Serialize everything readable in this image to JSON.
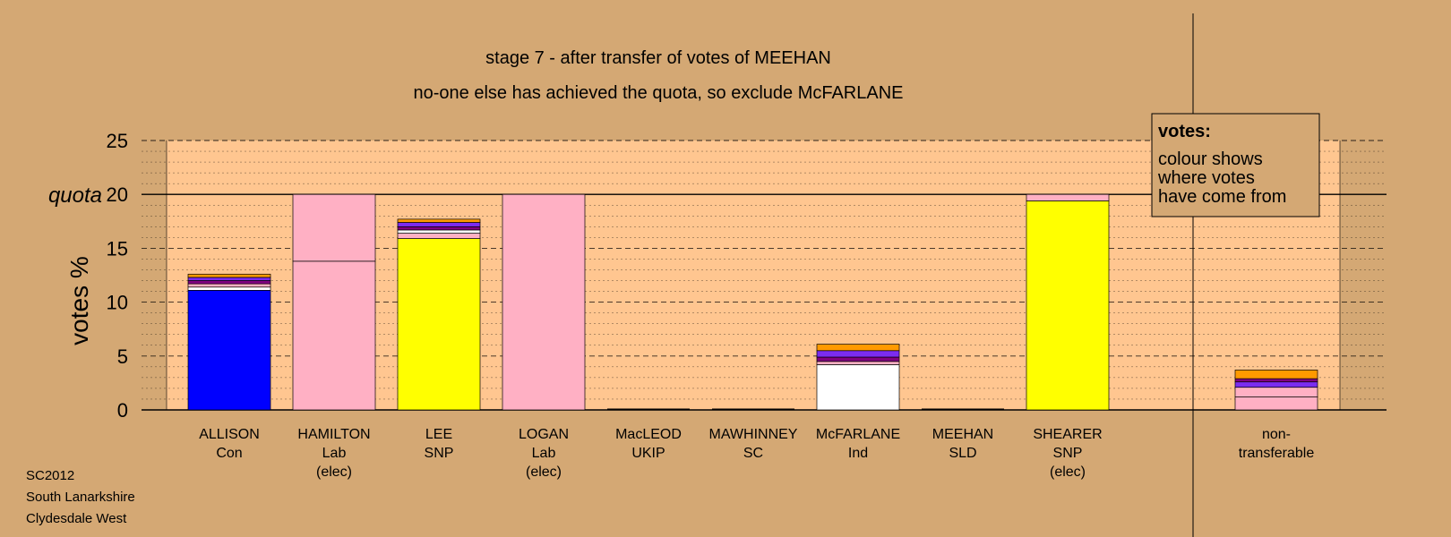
{
  "chart_data": {
    "type": "bar",
    "stacked": true,
    "title": "stage 7 - after transfer of votes of MEEHAN",
    "subtitle": "no-one else has achieved the quota, so exclude McFARLANE",
    "ylabel": "votes %",
    "ylim": [
      0,
      25
    ],
    "yticks": [
      0,
      5,
      10,
      15,
      20,
      25
    ],
    "quota": 20,
    "quota_label": "quota",
    "grid": true,
    "categories": [
      {
        "lines": [
          "ALLISON",
          "Con"
        ]
      },
      {
        "lines": [
          "HAMILTON",
          "Lab",
          "(elec)"
        ]
      },
      {
        "lines": [
          "LEE",
          "SNP"
        ]
      },
      {
        "lines": [
          "LOGAN",
          "Lab",
          "(elec)"
        ]
      },
      {
        "lines": [
          "MacLEOD",
          "UKIP"
        ]
      },
      {
        "lines": [
          "MAWHINNEY",
          "SC"
        ]
      },
      {
        "lines": [
          "McFARLANE",
          "Ind"
        ]
      },
      {
        "lines": [
          "MEEHAN",
          "SLD"
        ]
      },
      {
        "lines": [
          "SHEARER",
          "SNP",
          "(elec)"
        ]
      },
      {
        "lines": [
          "non-",
          "transferable"
        ]
      }
    ],
    "colors": {
      "Con": "#0000ff",
      "Lab": "#ffb0c4",
      "SNP": "#ffff00",
      "Ind": "#ffffff",
      "UKIP": "#800080",
      "SC": "#7b2cf0",
      "SLD": "#ff9a00"
    },
    "segments": [
      [
        {
          "from": "Con",
          "value": 11.1
        },
        {
          "from": "Ind",
          "value": 0.3
        },
        {
          "from": "Lab",
          "value": 0.3
        },
        {
          "from": "UKIP",
          "value": 0.3
        },
        {
          "from": "SC",
          "value": 0.3
        },
        {
          "from": "SLD",
          "value": 0.3
        }
      ],
      [
        {
          "from": "Lab",
          "value": 13.8
        },
        {
          "from": "Lab",
          "value": 6.2
        }
      ],
      [
        {
          "from": "SNP",
          "value": 15.9
        },
        {
          "from": "Lab",
          "value": 0.5
        },
        {
          "from": "Ind",
          "value": 0.3
        },
        {
          "from": "UKIP",
          "value": 0.3
        },
        {
          "from": "SC",
          "value": 0.4
        },
        {
          "from": "SLD",
          "value": 0.3
        }
      ],
      [
        {
          "from": "Lab",
          "value": 20.0
        }
      ],
      [],
      [],
      [
        {
          "from": "Ind",
          "value": 4.2
        },
        {
          "from": "Lab",
          "value": 0.3
        },
        {
          "from": "UKIP",
          "value": 0.4
        },
        {
          "from": "SC",
          "value": 0.6
        },
        {
          "from": "SLD",
          "value": 0.6
        }
      ],
      [],
      [
        {
          "from": "SNP",
          "value": 19.4
        },
        {
          "from": "Lab",
          "value": 0.6
        }
      ],
      [
        {
          "from": "Lab",
          "value": 1.2
        },
        {
          "from": "Lab",
          "value": 0.9
        },
        {
          "from": "SC",
          "value": 0.5
        },
        {
          "from": "UKIP",
          "value": 0.3
        },
        {
          "from": "SLD",
          "value": 0.8
        }
      ]
    ],
    "legend": {
      "title": "votes:",
      "lines": [
        "colour shows",
        "where votes",
        "have come from"
      ],
      "placement": "top-right"
    },
    "footer": [
      "SC2012",
      "South Lanarkshire",
      "Clydesdale West"
    ]
  }
}
